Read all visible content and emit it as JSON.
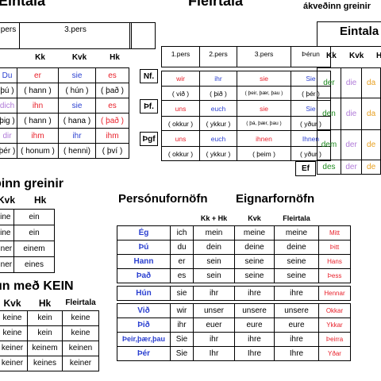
{
  "headings": {
    "eintala": "Eintala",
    "fleirtala": "Fleirtala",
    "akvedinn": "ákveðinn greinir",
    "eintala_right": "Eintala",
    "odinn": "ðinn greinir",
    "kein": "un með KEIN",
    "personu": "Persónufornöfn",
    "eignar": "Eignarfornöfn"
  },
  "t1": {
    "top": [
      "pers",
      "3.pers"
    ],
    "cols": [
      "Kk",
      "Kvk",
      "Hk"
    ],
    "rows": [
      [
        "Du",
        "er",
        "sie",
        "es"
      ],
      [
        "þú )",
        "( hann )",
        "( hún )",
        "( það )"
      ],
      [
        "dich",
        "ihn",
        "sie",
        "es"
      ],
      [
        "þig )",
        "( hann )",
        "( hana )",
        "( það )"
      ],
      [
        "dir",
        "ihm",
        "ihr",
        "ihm"
      ],
      [
        "þér )",
        "( honum )",
        "( henni)",
        "( því )"
      ]
    ]
  },
  "t2": {
    "cols": [
      "1.pers",
      "2.pers",
      "3.pers",
      "Þérun"
    ],
    "cases": [
      "Nf.",
      "Þf.",
      "Þgf"
    ],
    "rows": [
      [
        "wir",
        "ihr",
        "sie",
        "Sie"
      ],
      [
        "( við )",
        "( þið )",
        "( þeir, þær, þau )",
        "( þér )"
      ],
      [
        "uns",
        "euch",
        "sie",
        "Sie"
      ],
      [
        "( okkur )",
        "( ykkur )",
        "( þá, þær, þau )",
        "( yður )"
      ],
      [
        "uns",
        "euch",
        "ihnen",
        "Ihnen"
      ],
      [
        "( okkur )",
        "( ykkur )",
        "( þeim )",
        "( yður )"
      ]
    ]
  },
  "t3": {
    "cols": [
      "Kk",
      "Kvk",
      "H"
    ],
    "rows": [
      [
        "der",
        "die",
        "da"
      ],
      [
        "den",
        "die",
        "da"
      ],
      [
        "dem",
        "der",
        "de"
      ],
      [
        "des",
        "der",
        "de"
      ]
    ],
    "ef": "Ef"
  },
  "t4": {
    "cols": [
      "Kvk",
      "Hk"
    ],
    "rows": [
      [
        "eine",
        "ein"
      ],
      [
        "eine",
        "ein"
      ],
      [
        "einer",
        "einem"
      ],
      [
        "einer",
        "eines"
      ]
    ]
  },
  "t5": {
    "cols": [
      "Kvk",
      "Hk",
      "Fleirtala"
    ],
    "rows": [
      [
        "keine",
        "kein",
        "keine"
      ],
      [
        "keine",
        "kein",
        "keine"
      ],
      [
        "keiner",
        "keinem",
        "keinen"
      ],
      [
        "keiner",
        "keines",
        "keiner"
      ]
    ]
  },
  "t6": {
    "cols": [
      "Kk + Hk",
      "Kvk",
      "Fleirtala"
    ],
    "rows": [
      [
        "Ég",
        "ich",
        "mein",
        "meine",
        "meine",
        "Mitt"
      ],
      [
        "Þú",
        "du",
        "dein",
        "deine",
        "deine",
        "Þitt"
      ],
      [
        "Hann",
        "er",
        "sein",
        "seine",
        "seine",
        "Hans"
      ],
      [
        "Það",
        "es",
        "sein",
        "seine",
        "seine",
        "Þess"
      ],
      [
        "Hún",
        "sie",
        "ihr",
        "ihre",
        "ihre",
        "Hennar"
      ],
      [
        "Við",
        "wir",
        "unser",
        "unsere",
        "unsere",
        "Okkar"
      ],
      [
        "Þið",
        "ihr",
        "euer",
        "eure",
        "eure",
        "Ykkar"
      ],
      [
        "Þeir,þær,þau",
        "Sie",
        "ihr",
        "ihre",
        "ihre",
        "Þeirra"
      ],
      [
        "Þér",
        "Sie",
        "Ihr",
        "Ihre",
        "Ihre",
        "Yðar"
      ]
    ]
  }
}
